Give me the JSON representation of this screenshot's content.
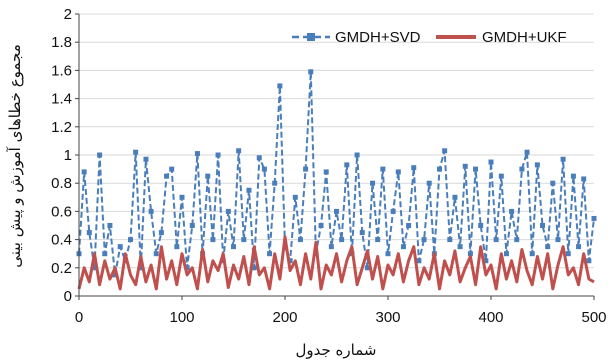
{
  "chart_data": {
    "type": "line",
    "xlabel": "شماره جدول",
    "ylabel": "مجموع خطاهای آموزش و پیش بینی",
    "xlim": [
      0,
      500
    ],
    "ylim": [
      0,
      2
    ],
    "x_ticks": [
      "0",
      "100",
      "200",
      "300",
      "400",
      "500"
    ],
    "y_ticks": [
      "0",
      "0.2",
      "0.4",
      "0.6",
      "0.8",
      "1",
      "1.2",
      "1.4",
      "1.6",
      "1.8",
      "2"
    ],
    "grid": true,
    "legend_position": "top-right",
    "series": [
      {
        "name": "GMDH+SVD",
        "color": "#4a7ebb",
        "style": "dashed-square-markers",
        "x": [
          0,
          5,
          10,
          15,
          20,
          25,
          30,
          35,
          40,
          45,
          50,
          55,
          60,
          65,
          70,
          75,
          80,
          85,
          90,
          95,
          100,
          105,
          110,
          115,
          120,
          125,
          130,
          135,
          140,
          145,
          150,
          155,
          160,
          165,
          170,
          175,
          180,
          185,
          190,
          195,
          200,
          205,
          210,
          215,
          220,
          225,
          230,
          235,
          240,
          245,
          250,
          255,
          260,
          265,
          270,
          275,
          280,
          285,
          290,
          295,
          300,
          305,
          310,
          315,
          320,
          325,
          330,
          335,
          340,
          345,
          350,
          355,
          360,
          365,
          370,
          375,
          380,
          385,
          390,
          395,
          400,
          405,
          410,
          415,
          420,
          425,
          430,
          435,
          440,
          445,
          450,
          455,
          460,
          465,
          470,
          475,
          480,
          485,
          490,
          495,
          500
        ],
        "values": [
          0.3,
          0.88,
          0.45,
          0.2,
          1.0,
          0.3,
          0.5,
          0.15,
          0.35,
          0.25,
          0.4,
          1.02,
          0.2,
          0.97,
          0.6,
          0.3,
          0.45,
          0.85,
          0.9,
          0.35,
          0.7,
          0.2,
          0.5,
          1.01,
          0.3,
          0.85,
          0.4,
          1.0,
          0.25,
          0.6,
          0.35,
          1.03,
          0.4,
          0.75,
          0.2,
          0.98,
          0.9,
          0.3,
          0.8,
          1.49,
          0.35,
          0.25,
          0.7,
          0.4,
          0.9,
          1.59,
          0.3,
          0.5,
          0.88,
          0.35,
          0.6,
          0.4,
          0.93,
          0.3,
          1.0,
          0.45,
          0.2,
          0.8,
          0.4,
          0.9,
          0.3,
          0.6,
          0.88,
          0.35,
          0.5,
          0.91,
          0.25,
          0.4,
          0.8,
          0.3,
          0.9,
          1.03,
          0.4,
          0.7,
          0.35,
          0.92,
          0.3,
          0.9,
          0.5,
          0.25,
          0.95,
          0.4,
          0.85,
          0.3,
          0.6,
          0.4,
          0.9,
          1.02,
          0.3,
          0.93,
          0.5,
          0.35,
          0.8,
          0.4,
          0.97,
          0.3,
          0.85,
          0.35,
          0.83,
          0.25,
          0.55
        ]
      },
      {
        "name": "GMDH+UKF",
        "color": "#c0504d",
        "style": "solid",
        "x": [
          0,
          5,
          10,
          15,
          20,
          25,
          30,
          35,
          40,
          45,
          50,
          55,
          60,
          65,
          70,
          75,
          80,
          85,
          90,
          95,
          100,
          105,
          110,
          115,
          120,
          125,
          130,
          135,
          140,
          145,
          150,
          155,
          160,
          165,
          170,
          175,
          180,
          185,
          190,
          195,
          200,
          205,
          210,
          215,
          220,
          225,
          230,
          235,
          240,
          245,
          250,
          255,
          260,
          265,
          270,
          275,
          280,
          285,
          290,
          295,
          300,
          305,
          310,
          315,
          320,
          325,
          330,
          335,
          340,
          345,
          350,
          355,
          360,
          365,
          370,
          375,
          380,
          385,
          390,
          395,
          400,
          405,
          410,
          415,
          420,
          425,
          430,
          435,
          440,
          445,
          450,
          455,
          460,
          465,
          470,
          475,
          480,
          485,
          490,
          495,
          500
        ],
        "values": [
          0.05,
          0.2,
          0.1,
          0.3,
          0.08,
          0.25,
          0.12,
          0.2,
          0.05,
          0.3,
          0.15,
          0.08,
          0.28,
          0.1,
          0.22,
          0.05,
          0.35,
          0.12,
          0.25,
          0.08,
          0.3,
          0.15,
          0.2,
          0.05,
          0.33,
          0.1,
          0.25,
          0.18,
          0.3,
          0.06,
          0.22,
          0.12,
          0.28,
          0.08,
          0.35,
          0.15,
          0.2,
          0.05,
          0.3,
          0.12,
          0.42,
          0.18,
          0.25,
          0.08,
          0.3,
          0.12,
          0.38,
          0.05,
          0.22,
          0.15,
          0.3,
          0.1,
          0.25,
          0.35,
          0.08,
          0.2,
          0.32,
          0.12,
          0.28,
          0.05,
          0.22,
          0.15,
          0.3,
          0.1,
          0.25,
          0.35,
          0.08,
          0.2,
          0.12,
          0.3,
          0.05,
          0.25,
          0.15,
          0.32,
          0.1,
          0.2,
          0.28,
          0.08,
          0.35,
          0.15,
          0.22,
          0.05,
          0.3,
          0.12,
          0.25,
          0.1,
          0.33,
          0.18,
          0.08,
          0.28,
          0.12,
          0.3,
          0.05,
          0.22,
          0.35,
          0.15,
          0.2,
          0.08,
          0.3,
          0.12,
          0.1
        ]
      }
    ]
  }
}
